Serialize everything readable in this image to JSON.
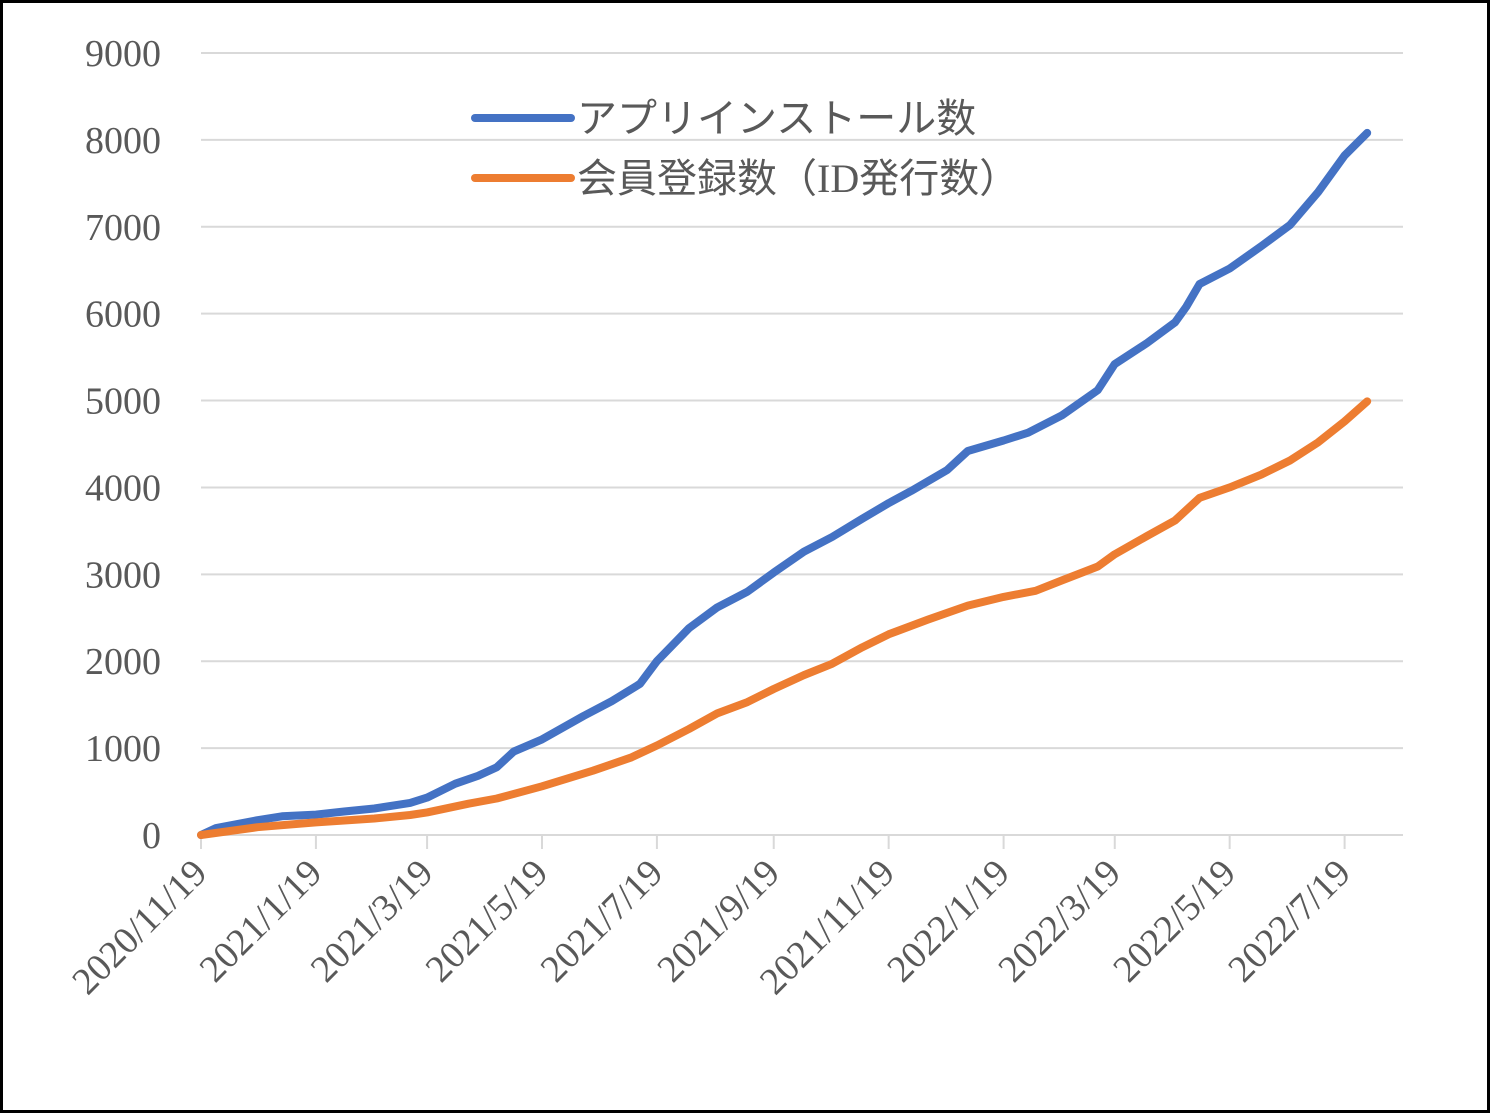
{
  "chart_data": {
    "type": "line",
    "title": "",
    "xlabel": "",
    "ylabel": "",
    "ylim": [
      0,
      9000
    ],
    "xlim": [
      "2020/11/19",
      "2022/8/19"
    ],
    "y_ticks": [
      "0",
      "1000",
      "2000",
      "3000",
      "4000",
      "5000",
      "6000",
      "7000",
      "8000",
      "9000"
    ],
    "x_ticks": [
      "2020/11/19",
      "2021/1/19",
      "2021/3/19",
      "2021/5/19",
      "2021/7/19",
      "2021/9/19",
      "2021/11/19",
      "2022/1/19",
      "2022/3/19",
      "2022/5/19",
      "2022/7/19"
    ],
    "grid": "horizontal",
    "legend_position": "top-center",
    "series": [
      {
        "name": "アプリインストール数",
        "color": "#4472C4",
        "points": [
          [
            "2020/11/19",
            0
          ],
          [
            "2020/11/27",
            80
          ],
          [
            "2020/12/19",
            170
          ],
          [
            "2021/1/1",
            215
          ],
          [
            "2021/1/19",
            235
          ],
          [
            "2021/2/3",
            270
          ],
          [
            "2021/2/19",
            305
          ],
          [
            "2021/3/10",
            370
          ],
          [
            "2021/3/19",
            430
          ],
          [
            "2021/4/3",
            590
          ],
          [
            "2021/4/15",
            680
          ],
          [
            "2021/4/25",
            780
          ],
          [
            "2021/5/4",
            960
          ],
          [
            "2021/5/19",
            1100
          ],
          [
            "2021/6/10",
            1370
          ],
          [
            "2021/6/25",
            1540
          ],
          [
            "2021/7/10",
            1740
          ],
          [
            "2021/7/19",
            2000
          ],
          [
            "2021/8/5",
            2380
          ],
          [
            "2021/8/20",
            2620
          ],
          [
            "2021/9/5",
            2800
          ],
          [
            "2021/9/19",
            3020
          ],
          [
            "2021/10/5",
            3260
          ],
          [
            "2021/10/20",
            3430
          ],
          [
            "2021/11/5",
            3640
          ],
          [
            "2021/11/19",
            3820
          ],
          [
            "2021/12/1",
            3960
          ],
          [
            "2021/12/20",
            4200
          ],
          [
            "2021/12/31",
            4420
          ],
          [
            "2022/1/19",
            4540
          ],
          [
            "2022/2/1",
            4630
          ],
          [
            "2022/2/19",
            4830
          ],
          [
            "2022/3/10",
            5120
          ],
          [
            "2022/3/19",
            5420
          ],
          [
            "2022/4/5",
            5660
          ],
          [
            "2022/4/20",
            5900
          ],
          [
            "2022/4/26",
            6080
          ],
          [
            "2022/5/3",
            6340
          ],
          [
            "2022/5/19",
            6520
          ],
          [
            "2022/6/5",
            6780
          ],
          [
            "2022/6/20",
            7020
          ],
          [
            "2022/7/5",
            7400
          ],
          [
            "2022/7/19",
            7820
          ],
          [
            "2022/7/31",
            8080
          ]
        ]
      },
      {
        "name": "会員登録数（ID発行数）",
        "color": "#ED7D31",
        "points": [
          [
            "2020/11/19",
            0
          ],
          [
            "2020/12/19",
            90
          ],
          [
            "2021/1/19",
            145
          ],
          [
            "2021/2/19",
            190
          ],
          [
            "2021/3/10",
            230
          ],
          [
            "2021/3/19",
            260
          ],
          [
            "2021/4/10",
            360
          ],
          [
            "2021/4/25",
            420
          ],
          [
            "2021/5/19",
            560
          ],
          [
            "2021/6/15",
            740
          ],
          [
            "2021/7/5",
            890
          ],
          [
            "2021/7/19",
            1030
          ],
          [
            "2021/8/5",
            1220
          ],
          [
            "2021/8/20",
            1400
          ],
          [
            "2021/9/5",
            1530
          ],
          [
            "2021/9/19",
            1680
          ],
          [
            "2021/10/5",
            1840
          ],
          [
            "2021/10/20",
            1970
          ],
          [
            "2021/11/5",
            2160
          ],
          [
            "2021/11/19",
            2310
          ],
          [
            "2021/12/10",
            2480
          ],
          [
            "2021/12/31",
            2640
          ],
          [
            "2022/1/19",
            2740
          ],
          [
            "2022/2/5",
            2810
          ],
          [
            "2022/2/19",
            2930
          ],
          [
            "2022/3/10",
            3090
          ],
          [
            "2022/3/19",
            3230
          ],
          [
            "2022/4/5",
            3440
          ],
          [
            "2022/4/20",
            3620
          ],
          [
            "2022/5/3",
            3880
          ],
          [
            "2022/5/19",
            4000
          ],
          [
            "2022/6/5",
            4150
          ],
          [
            "2022/6/20",
            4310
          ],
          [
            "2022/7/5",
            4520
          ],
          [
            "2022/7/19",
            4760
          ],
          [
            "2022/7/31",
            4990
          ]
        ]
      }
    ]
  }
}
